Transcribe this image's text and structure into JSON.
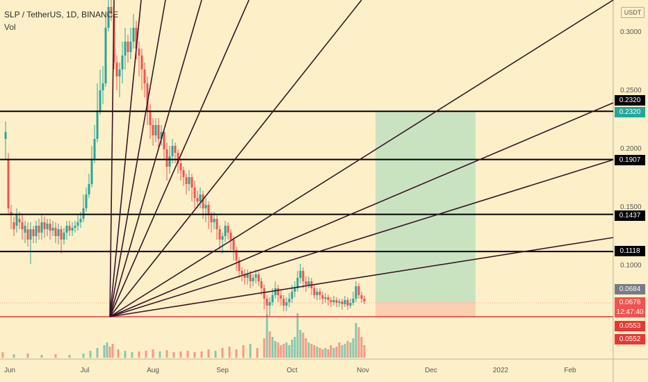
{
  "header": {
    "symbol_line": "SLP / TetherUS, 1D, BINANCE",
    "vol_label": "Vol"
  },
  "price_axis": {
    "currency": "USDT",
    "ticks": [
      {
        "label": "0.3000",
        "value": 0.3
      },
      {
        "label": "0.2500",
        "value": 0.25
      },
      {
        "label": "0.2000",
        "value": 0.2
      },
      {
        "label": "0.1500",
        "value": 0.15
      },
      {
        "label": "0.1000",
        "value": 0.1
      }
    ]
  },
  "time_axis": {
    "labels": [
      "Jun",
      "Jul",
      "Aug",
      "Sep",
      "Oct",
      "Nov",
      "Dec",
      "2022",
      "Feb"
    ]
  },
  "horizontal_levels": [
    {
      "label": "0.2320",
      "value": 0.232
    },
    {
      "label": "0.1907",
      "value": 0.1907
    },
    {
      "label": "0.1437",
      "value": 0.1437
    },
    {
      "label": "0.1118",
      "value": 0.1118
    }
  ],
  "price_tags": {
    "level_2320_green": "0.2320",
    "last_close_grey": "0.0684",
    "current_price": "0.0678",
    "countdown": "12:47:40",
    "stop_1": "0.0553",
    "stop_2": "0.0552"
  },
  "colors": {
    "background": "#fdf0c8",
    "candle_up": "#26a69a",
    "candle_down": "#ef5350",
    "fan_lines": "#3a1428",
    "target_zone": "#c9e3c1",
    "stop_zone": "#fbd0b0",
    "support_line": "#e53935"
  }
}
